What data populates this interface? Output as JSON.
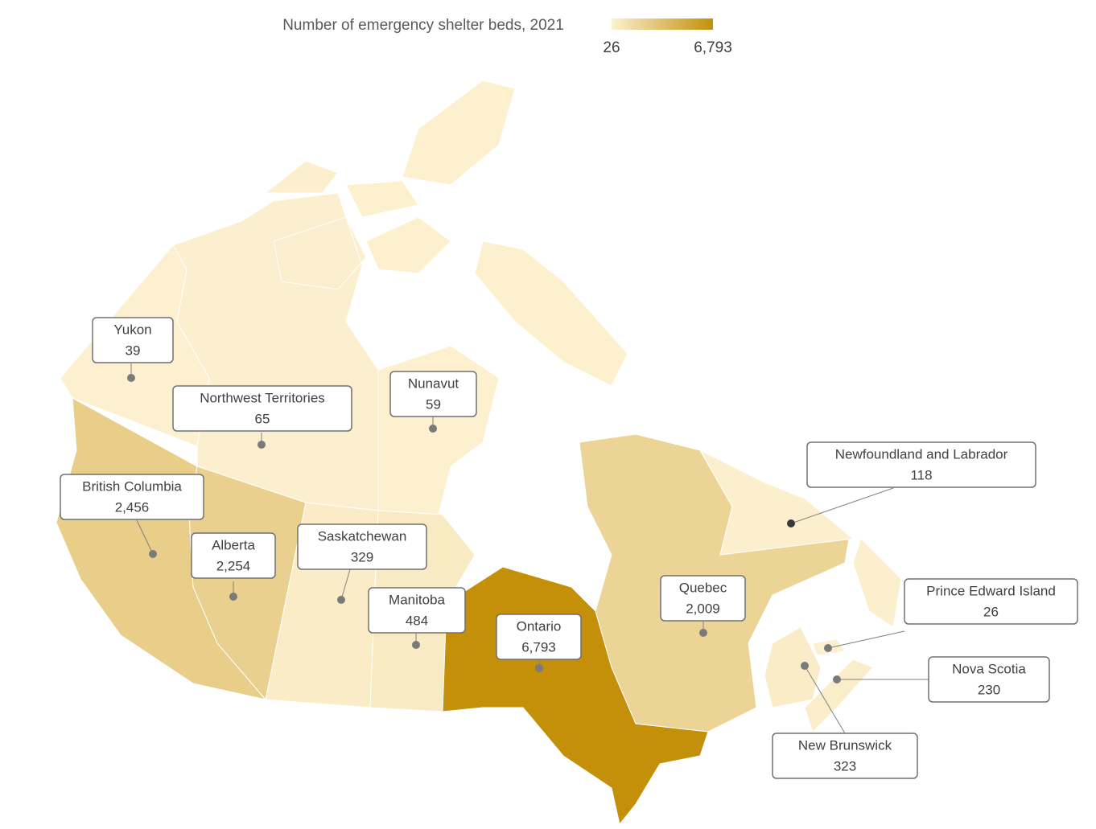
{
  "chart_data": {
    "type": "choropleth",
    "title": "Number of emergency shelter beds, 2021",
    "categories": [
      "Yukon",
      "Northwest Territories",
      "Nunavut",
      "British Columbia",
      "Alberta",
      "Saskatchewan",
      "Manitoba",
      "Ontario",
      "Quebec",
      "Newfoundland and Labrador",
      "Prince Edward Island",
      "Nova Scotia",
      "New Brunswick"
    ],
    "values": [
      39,
      65,
      59,
      2456,
      2254,
      329,
      484,
      6793,
      2009,
      118,
      26,
      230,
      323
    ],
    "value_labels": [
      "39",
      "65",
      "59",
      "2,456",
      "2,254",
      "329",
      "484",
      "6,793",
      "2,009",
      "118",
      "26",
      "230",
      "323"
    ],
    "clim": [
      26,
      6793
    ],
    "cticks": [
      26,
      {
        "value": 6793,
        "label": "6,793"
      }
    ],
    "color_range": [
      "#fcf0d0",
      "#c4900a"
    ]
  }
}
